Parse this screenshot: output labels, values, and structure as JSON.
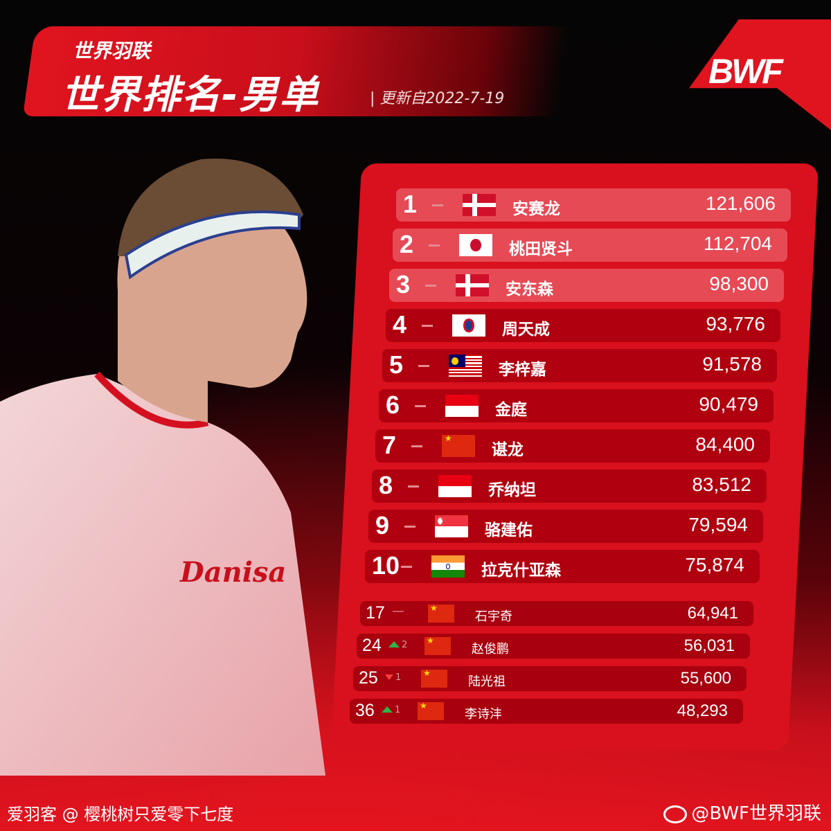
{
  "header": {
    "subtitle": "世界羽联",
    "title": "世界排名-男单",
    "updated": "| 更新自2022-7-19",
    "logo": "BWF"
  },
  "colors": {
    "brand_red": "#e0141f",
    "row_top3": "#e64a55",
    "row": "#b0000f",
    "up": "#2fb44a",
    "down": "#ff3a3a"
  },
  "top10": [
    {
      "rank": "1",
      "change": "—",
      "flag": "denmark",
      "name": "安赛龙",
      "points": "121,606"
    },
    {
      "rank": "2",
      "change": "—",
      "flag": "japan",
      "name": "桃田贤斗",
      "points": "112,704"
    },
    {
      "rank": "3",
      "change": "—",
      "flag": "denmark",
      "name": "安东森",
      "points": "98,300"
    },
    {
      "rank": "4",
      "change": "—",
      "flag": "chinese-taipei",
      "name": "周天成",
      "points": "93,776"
    },
    {
      "rank": "5",
      "change": "—",
      "flag": "malaysia",
      "name": "李梓嘉",
      "points": "91,578"
    },
    {
      "rank": "6",
      "change": "—",
      "flag": "indonesia",
      "name": "金庭",
      "points": "90,479"
    },
    {
      "rank": "7",
      "change": "—",
      "flag": "china",
      "name": "谌龙",
      "points": "84,400"
    },
    {
      "rank": "8",
      "change": "—",
      "flag": "indonesia",
      "name": "乔纳坦",
      "points": "83,512"
    },
    {
      "rank": "9",
      "change": "—",
      "flag": "singapore",
      "name": "骆建佑",
      "points": "79,594"
    },
    {
      "rank": "10",
      "change": "—",
      "flag": "india",
      "name": "拉克什亚森",
      "points": "75,874"
    }
  ],
  "others": [
    {
      "rank": "17",
      "dir": "same",
      "change": "—",
      "flag": "china",
      "name": "石宇奇",
      "points": "64,941"
    },
    {
      "rank": "24",
      "dir": "up",
      "change": "2",
      "flag": "china",
      "name": "赵俊鹏",
      "points": "56,031"
    },
    {
      "rank": "25",
      "dir": "down",
      "change": "1",
      "flag": "china",
      "name": "陆光祖",
      "points": "55,600"
    },
    {
      "rank": "36",
      "dir": "up",
      "change": "1",
      "flag": "china",
      "name": "李诗沣",
      "points": "48,293"
    }
  ],
  "footer": {
    "left": "爱羽客 @ 樱桃树只爱零下七度",
    "right": "@BWF世界羽联",
    "weibo_icon": "weibo-icon"
  }
}
